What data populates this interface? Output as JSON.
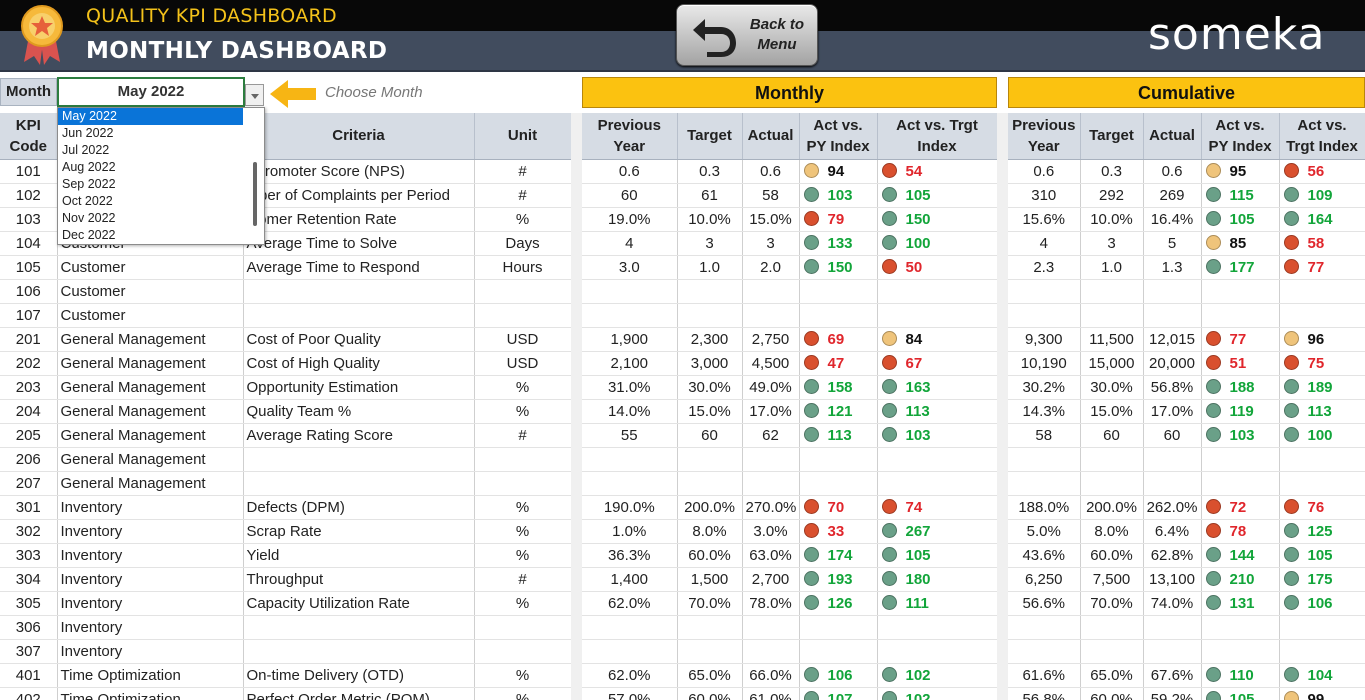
{
  "header": {
    "app_title": "QUALITY KPI DASHBOARD",
    "page_title": "MONTHLY DASHBOARD",
    "back_label": "Back to Menu",
    "brand": "someka"
  },
  "controls": {
    "month_label": "Month",
    "selected_month": "May 2022",
    "hint": "Choose Month",
    "dropdown": [
      "May 2022",
      "Jun 2022",
      "Jul 2022",
      "Aug 2022",
      "Sep 2022",
      "Oct 2022",
      "Nov 2022",
      "Dec 2022"
    ]
  },
  "bands": {
    "monthly": "Monthly",
    "cumulative": "Cumulative"
  },
  "columns": {
    "kpi_code": "KPI Code",
    "criteria": "Criteria",
    "unit": "Unit",
    "previous_year": "Previous Year",
    "target": "Target",
    "actual": "Actual",
    "act_vs_py": "Act vs. PY Index",
    "act_vs_trgt": "Act vs. Trgt Index"
  },
  "colors": {
    "header_bg": "#414c5e",
    "title_gold": "#f4c21a",
    "band_yellow": "#fbc210",
    "good": "#12a53a",
    "bad": "#e0262c",
    "dot_green": "#6aa088",
    "dot_red": "#d9502e",
    "dot_amber": "#efc47b"
  },
  "rows": [
    {
      "code": "101",
      "group": "",
      "criteria": "t Promoter Score (NPS)",
      "unit": "#",
      "m": [
        "0.6",
        "0.3",
        "0.6"
      ],
      "mpy": [
        "amber",
        "94",
        "k"
      ],
      "mtg": [
        "red",
        "54",
        "r"
      ],
      "c": [
        "0.6",
        "0.3",
        "0.6"
      ],
      "cpy": [
        "amber",
        "95",
        "k"
      ],
      "ctg": [
        "red",
        "56",
        "r"
      ]
    },
    {
      "code": "102",
      "group": "",
      "criteria": "mber of Complaints per Period",
      "unit": "#",
      "m": [
        "60",
        "61",
        "58"
      ],
      "mpy": [
        "green",
        "103",
        "g"
      ],
      "mtg": [
        "green",
        "105",
        "g"
      ],
      "c": [
        "310",
        "292",
        "269"
      ],
      "cpy": [
        "green",
        "115",
        "g"
      ],
      "ctg": [
        "green",
        "109",
        "g"
      ]
    },
    {
      "code": "103",
      "group": "",
      "criteria": "stomer Retention Rate",
      "unit": "%",
      "m": [
        "19.0%",
        "10.0%",
        "15.0%"
      ],
      "mpy": [
        "red",
        "79",
        "r"
      ],
      "mtg": [
        "green",
        "150",
        "g"
      ],
      "c": [
        "15.6%",
        "10.0%",
        "16.4%"
      ],
      "cpy": [
        "green",
        "105",
        "g"
      ],
      "ctg": [
        "green",
        "164",
        "g"
      ]
    },
    {
      "code": "104",
      "group": "Customer",
      "criteria": "Average Time to Solve",
      "unit": "Days",
      "m": [
        "4",
        "3",
        "3"
      ],
      "mpy": [
        "green",
        "133",
        "g"
      ],
      "mtg": [
        "green",
        "100",
        "g"
      ],
      "c": [
        "4",
        "3",
        "5"
      ],
      "cpy": [
        "amber",
        "85",
        "k"
      ],
      "ctg": [
        "red",
        "58",
        "r"
      ]
    },
    {
      "code": "105",
      "group": "Customer",
      "criteria": "Average Time to Respond",
      "unit": "Hours",
      "m": [
        "3.0",
        "1.0",
        "2.0"
      ],
      "mpy": [
        "green",
        "150",
        "g"
      ],
      "mtg": [
        "red",
        "50",
        "r"
      ],
      "c": [
        "2.3",
        "1.0",
        "1.3"
      ],
      "cpy": [
        "green",
        "177",
        "g"
      ],
      "ctg": [
        "red",
        "77",
        "r"
      ]
    },
    {
      "code": "106",
      "group": "Customer",
      "criteria": "",
      "unit": ""
    },
    {
      "code": "107",
      "group": "Customer",
      "criteria": "",
      "unit": ""
    },
    {
      "code": "201",
      "group": "General Management",
      "criteria": "Cost of Poor Quality",
      "unit": "USD",
      "m": [
        "1,900",
        "2,300",
        "2,750"
      ],
      "mpy": [
        "red",
        "69",
        "r"
      ],
      "mtg": [
        "amber",
        "84",
        "k"
      ],
      "c": [
        "9,300",
        "11,500",
        "12,015"
      ],
      "cpy": [
        "red",
        "77",
        "r"
      ],
      "ctg": [
        "amber",
        "96",
        "k"
      ],
      "grp": true
    },
    {
      "code": "202",
      "group": "General Management",
      "criteria": "Cost of High Quality",
      "unit": "USD",
      "m": [
        "2,100",
        "3,000",
        "4,500"
      ],
      "mpy": [
        "red",
        "47",
        "r"
      ],
      "mtg": [
        "red",
        "67",
        "r"
      ],
      "c": [
        "10,190",
        "15,000",
        "20,000"
      ],
      "cpy": [
        "red",
        "51",
        "r"
      ],
      "ctg": [
        "red",
        "75",
        "r"
      ]
    },
    {
      "code": "203",
      "group": "General Management",
      "criteria": "Opportunity Estimation",
      "unit": "%",
      "m": [
        "31.0%",
        "30.0%",
        "49.0%"
      ],
      "mpy": [
        "green",
        "158",
        "g"
      ],
      "mtg": [
        "green",
        "163",
        "g"
      ],
      "c": [
        "30.2%",
        "30.0%",
        "56.8%"
      ],
      "cpy": [
        "green",
        "188",
        "g"
      ],
      "ctg": [
        "green",
        "189",
        "g"
      ]
    },
    {
      "code": "204",
      "group": "General Management",
      "criteria": "Quality Team %",
      "unit": "%",
      "m": [
        "14.0%",
        "15.0%",
        "17.0%"
      ],
      "mpy": [
        "green",
        "121",
        "g"
      ],
      "mtg": [
        "green",
        "113",
        "g"
      ],
      "c": [
        "14.3%",
        "15.0%",
        "17.0%"
      ],
      "cpy": [
        "green",
        "119",
        "g"
      ],
      "ctg": [
        "green",
        "113",
        "g"
      ]
    },
    {
      "code": "205",
      "group": "General Management",
      "criteria": "Average Rating Score",
      "unit": "#",
      "m": [
        "55",
        "60",
        "62"
      ],
      "mpy": [
        "green",
        "113",
        "g"
      ],
      "mtg": [
        "green",
        "103",
        "g"
      ],
      "c": [
        "58",
        "60",
        "60"
      ],
      "cpy": [
        "green",
        "103",
        "g"
      ],
      "ctg": [
        "green",
        "100",
        "g"
      ]
    },
    {
      "code": "206",
      "group": "General Management",
      "criteria": "",
      "unit": ""
    },
    {
      "code": "207",
      "group": "General Management",
      "criteria": "",
      "unit": ""
    },
    {
      "code": "301",
      "group": "Inventory",
      "criteria": "Defects (DPM)",
      "unit": "%",
      "m": [
        "190.0%",
        "200.0%",
        "270.0%"
      ],
      "mpy": [
        "red",
        "70",
        "r"
      ],
      "mtg": [
        "red",
        "74",
        "r"
      ],
      "c": [
        "188.0%",
        "200.0%",
        "262.0%"
      ],
      "cpy": [
        "red",
        "72",
        "r"
      ],
      "ctg": [
        "red",
        "76",
        "r"
      ],
      "grp": true
    },
    {
      "code": "302",
      "group": "Inventory",
      "criteria": "Scrap Rate",
      "unit": "%",
      "m": [
        "1.0%",
        "8.0%",
        "3.0%"
      ],
      "mpy": [
        "red",
        "33",
        "r"
      ],
      "mtg": [
        "green",
        "267",
        "g"
      ],
      "c": [
        "5.0%",
        "8.0%",
        "6.4%"
      ],
      "cpy": [
        "red",
        "78",
        "r"
      ],
      "ctg": [
        "green",
        "125",
        "g"
      ]
    },
    {
      "code": "303",
      "group": "Inventory",
      "criteria": "Yield",
      "unit": "%",
      "m": [
        "36.3%",
        "60.0%",
        "63.0%"
      ],
      "mpy": [
        "green",
        "174",
        "g"
      ],
      "mtg": [
        "green",
        "105",
        "g"
      ],
      "c": [
        "43.6%",
        "60.0%",
        "62.8%"
      ],
      "cpy": [
        "green",
        "144",
        "g"
      ],
      "ctg": [
        "green",
        "105",
        "g"
      ]
    },
    {
      "code": "304",
      "group": "Inventory",
      "criteria": "Throughput",
      "unit": "#",
      "m": [
        "1,400",
        "1,500",
        "2,700"
      ],
      "mpy": [
        "green",
        "193",
        "g"
      ],
      "mtg": [
        "green",
        "180",
        "g"
      ],
      "c": [
        "6,250",
        "7,500",
        "13,100"
      ],
      "cpy": [
        "green",
        "210",
        "g"
      ],
      "ctg": [
        "green",
        "175",
        "g"
      ]
    },
    {
      "code": "305",
      "group": "Inventory",
      "criteria": "Capacity Utilization Rate",
      "unit": "%",
      "m": [
        "62.0%",
        "70.0%",
        "78.0%"
      ],
      "mpy": [
        "green",
        "126",
        "g"
      ],
      "mtg": [
        "green",
        "111",
        "g"
      ],
      "c": [
        "56.6%",
        "70.0%",
        "74.0%"
      ],
      "cpy": [
        "green",
        "131",
        "g"
      ],
      "ctg": [
        "green",
        "106",
        "g"
      ]
    },
    {
      "code": "306",
      "group": "Inventory",
      "criteria": "",
      "unit": ""
    },
    {
      "code": "307",
      "group": "Inventory",
      "criteria": "",
      "unit": ""
    },
    {
      "code": "401",
      "group": "Time Optimization",
      "criteria": "On-time Delivery (OTD)",
      "unit": "%",
      "m": [
        "62.0%",
        "65.0%",
        "66.0%"
      ],
      "mpy": [
        "green",
        "106",
        "g"
      ],
      "mtg": [
        "green",
        "102",
        "g"
      ],
      "c": [
        "61.6%",
        "65.0%",
        "67.6%"
      ],
      "cpy": [
        "green",
        "110",
        "g"
      ],
      "ctg": [
        "green",
        "104",
        "g"
      ],
      "grp": true
    },
    {
      "code": "402",
      "group": "Time Optimization",
      "criteria": "Perfect Order Metric (POM)",
      "unit": "%",
      "m": [
        "57.0%",
        "60.0%",
        "61.0%"
      ],
      "mpy": [
        "green",
        "107",
        "g"
      ],
      "mtg": [
        "green",
        "102",
        "g"
      ],
      "c": [
        "56.8%",
        "60.0%",
        "59.2%"
      ],
      "cpy": [
        "green",
        "105",
        "g"
      ],
      "ctg": [
        "amber",
        "99",
        "k"
      ]
    }
  ]
}
